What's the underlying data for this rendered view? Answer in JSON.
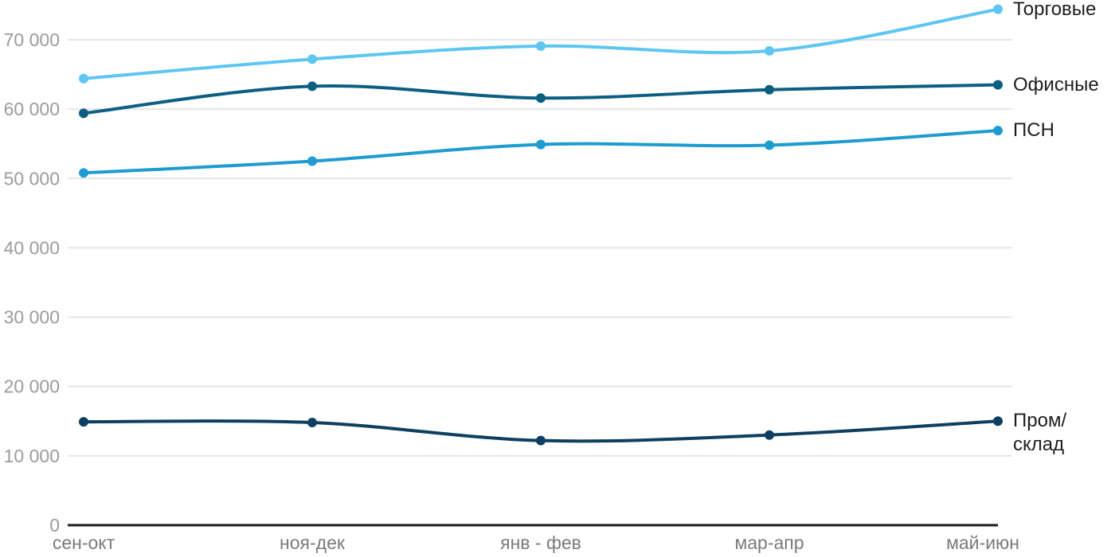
{
  "chart_data": {
    "type": "line",
    "title": "",
    "xlabel": "",
    "ylabel": "",
    "curve": "smooth",
    "grid": true,
    "legend_position": "right",
    "categories": [
      "сен-окт",
      "ноя-дек",
      "янв - фев",
      "мар-апр",
      "май-июн"
    ],
    "series": [
      {
        "name": "Торговые",
        "legend_label": "Торговые",
        "color": "#5DC6F1",
        "values": [
          64400,
          67200,
          69100,
          68400,
          74400
        ]
      },
      {
        "name": "Офисные",
        "legend_label": "Офисные",
        "color": "#0C5F82",
        "values": [
          59400,
          63300,
          61600,
          62800,
          63500
        ]
      },
      {
        "name": "ПСН",
        "legend_label": "ПСН",
        "color": "#1E9BD0",
        "values": [
          50800,
          52500,
          54900,
          54800,
          56900
        ]
      },
      {
        "name": "Пром/склад",
        "legend_label": "Пром/\nсклад",
        "color": "#0E3F60",
        "values": [
          14900,
          14800,
          12200,
          13000,
          15000
        ]
      }
    ],
    "ylim": [
      0,
      70000
    ],
    "yticks": [
      0,
      10000,
      20000,
      30000,
      40000,
      50000,
      60000,
      70000
    ],
    "ytick_labels": [
      "0",
      "10 000",
      "20 000",
      "30 000",
      "40 000",
      "50 000",
      "60 000",
      "70 000"
    ]
  },
  "styles": {
    "background": "#FFFFFF",
    "grid_color": "#E6E6E6",
    "axis_color": "#1A1A1A",
    "ytick_color": "#9B9B9B",
    "xtick_color": "#7A7A7A",
    "legend_text_color": "#1E1E1E"
  }
}
